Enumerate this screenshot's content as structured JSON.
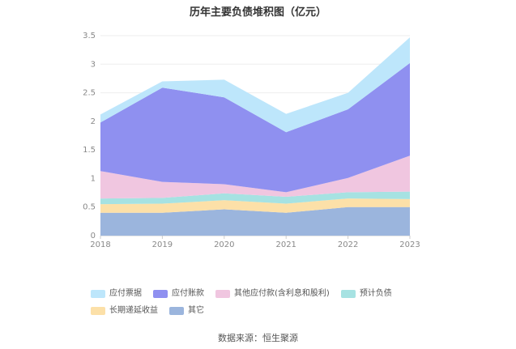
{
  "chart_data": {
    "type": "area",
    "stacked": true,
    "title": "历年主要负债堆积图（亿元）",
    "categories": [
      "2018",
      "2019",
      "2020",
      "2021",
      "2022",
      "2023"
    ],
    "ylim": [
      0,
      3.5
    ],
    "yticks": [
      "0",
      "0.5",
      "1",
      "1.5",
      "2",
      "2.5",
      "3",
      "3.5"
    ],
    "grid": true,
    "legend_position": "bottom",
    "series": [
      {
        "name": "其它",
        "color": "#9bb5dd",
        "values": [
          0.4,
          0.4,
          0.46,
          0.4,
          0.5,
          0.5
        ]
      },
      {
        "name": "长期递延收益",
        "color": "#fce0a8",
        "values": [
          0.15,
          0.16,
          0.16,
          0.16,
          0.15,
          0.14
        ]
      },
      {
        "name": "预计负债",
        "color": "#a6e2e2",
        "values": [
          0.1,
          0.1,
          0.12,
          0.12,
          0.11,
          0.13
        ]
      },
      {
        "name": "其他应付款(含利息和股利)",
        "color": "#f0c6e0",
        "values": [
          0.48,
          0.28,
          0.16,
          0.08,
          0.25,
          0.63
        ]
      },
      {
        "name": "应付账款",
        "color": "#8f90f0",
        "values": [
          0.85,
          1.65,
          1.52,
          1.05,
          1.2,
          1.62
        ]
      },
      {
        "name": "应付票据",
        "color": "#bde6fb",
        "values": [
          0.14,
          0.11,
          0.31,
          0.32,
          0.29,
          0.45
        ]
      }
    ],
    "legend_order": [
      "应付票据",
      "应付账款",
      "其他应付款(含利息和股利)",
      "预计负债",
      "长期递延收益",
      "其它"
    ]
  },
  "source": "数据来源：恒生聚源"
}
